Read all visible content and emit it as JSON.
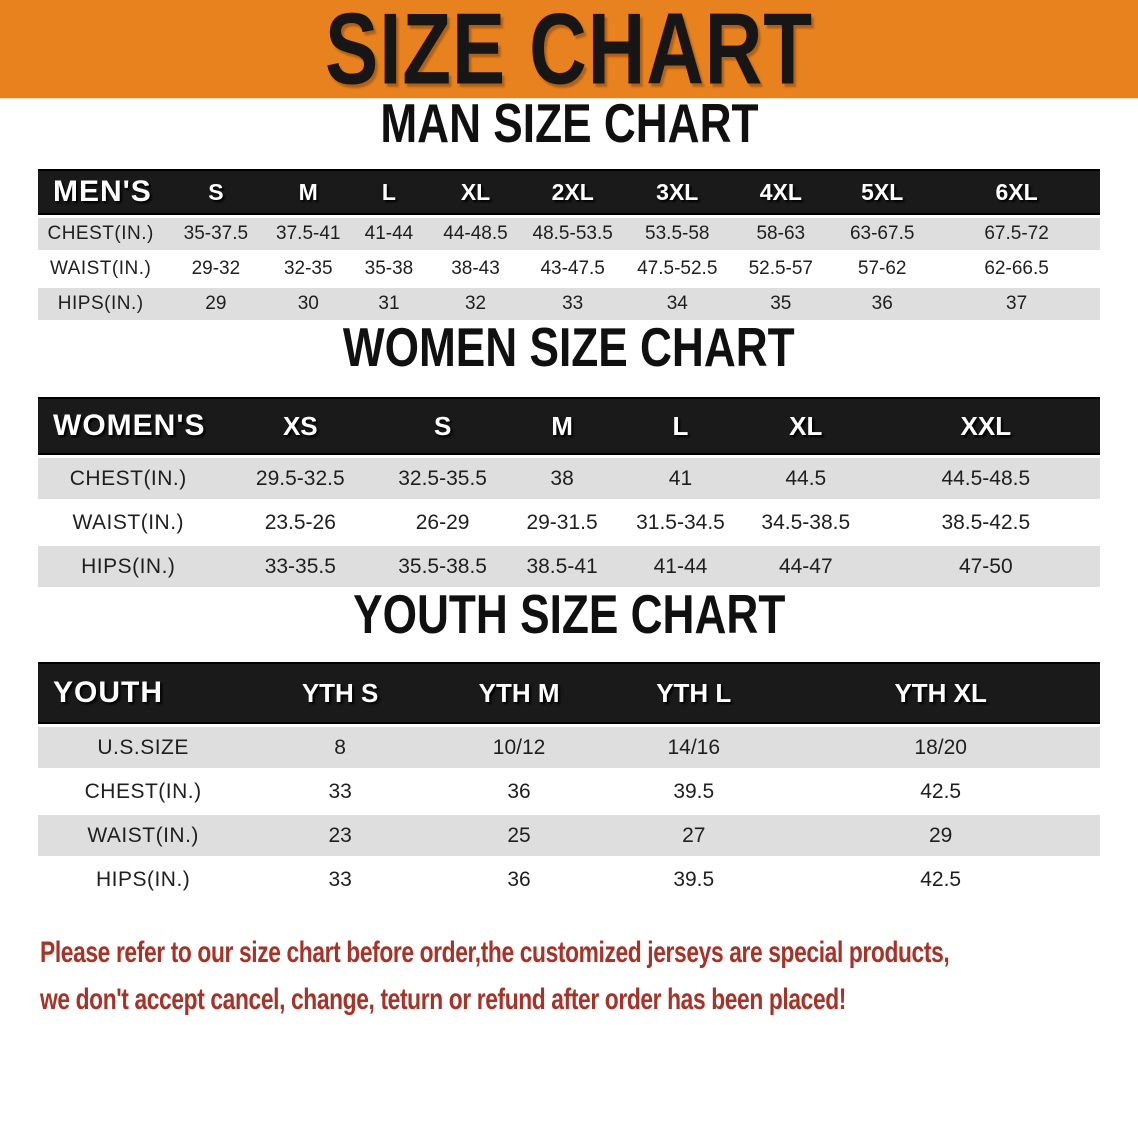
{
  "banner": {
    "title": "SIZE CHART"
  },
  "colors": {
    "banner_bg": "#E8821E",
    "table_header_bg": "#1A1A1A",
    "row_stripe_gray": "#DEDEDE",
    "note_text": "#A93226"
  },
  "sections": [
    {
      "heading": "MAN SIZE CHART",
      "table": {
        "label": "MEN'S",
        "columns": [
          "S",
          "M",
          "L",
          "XL",
          "2XL",
          "3XL",
          "4XL",
          "5XL",
          "6XL"
        ],
        "rows": [
          {
            "label": "CHEST(IN.)",
            "values": [
              "35-37.5",
              "37.5-41",
              "41-44",
              "44-48.5",
              "48.5-53.5",
              "53.5-58",
              "58-63",
              "63-67.5",
              "67.5-72"
            ]
          },
          {
            "label": "WAIST(IN.)",
            "values": [
              "29-32",
              "32-35",
              "35-38",
              "38-43",
              "43-47.5",
              "47.5-52.5",
              "52.5-57",
              "57-62",
              "62-66.5"
            ]
          },
          {
            "label": "HIPS(IN.)",
            "values": [
              "29",
              "30",
              "31",
              "32",
              "33",
              "34",
              "35",
              "36",
              "37"
            ]
          }
        ]
      }
    },
    {
      "heading": "WOMEN SIZE CHART",
      "table": {
        "label": "WOMEN'S",
        "columns": [
          "XS",
          "S",
          "M",
          "L",
          "XL",
          "XXL"
        ],
        "rows": [
          {
            "label": "CHEST(IN.)",
            "values": [
              "29.5-32.5",
              "32.5-35.5",
              "38",
              "41",
              "44.5",
              "44.5-48.5"
            ]
          },
          {
            "label": "WAIST(IN.)",
            "values": [
              "23.5-26",
              "26-29",
              "29-31.5",
              "31.5-34.5",
              "34.5-38.5",
              "38.5-42.5"
            ]
          },
          {
            "label": "HIPS(IN.)",
            "values": [
              "33-35.5",
              "35.5-38.5",
              "38.5-41",
              "41-44",
              "44-47",
              "47-50"
            ]
          }
        ]
      }
    },
    {
      "heading": "YOUTH SIZE CHART",
      "table": {
        "label": "YOUTH",
        "columns": [
          "YTH S",
          "YTH M",
          "YTH L",
          "YTH XL"
        ],
        "rows": [
          {
            "label": "U.S.SIZE",
            "values": [
              "8",
              "10/12",
              "14/16",
              "18/20"
            ]
          },
          {
            "label": "CHEST(IN.)",
            "values": [
              "33",
              "36",
              "39.5",
              "42.5"
            ]
          },
          {
            "label": "WAIST(IN.)",
            "values": [
              "23",
              "25",
              "27",
              "29"
            ]
          },
          {
            "label": "HIPS(IN.)",
            "values": [
              "33",
              "36",
              "39.5",
              "42.5"
            ]
          }
        ]
      }
    }
  ],
  "note": {
    "line1": "Please refer to our size chart before order,the customized jerseys are special products,",
    "line2": "we don't accept cancel, change, teturn or refund after order has been placed!"
  }
}
